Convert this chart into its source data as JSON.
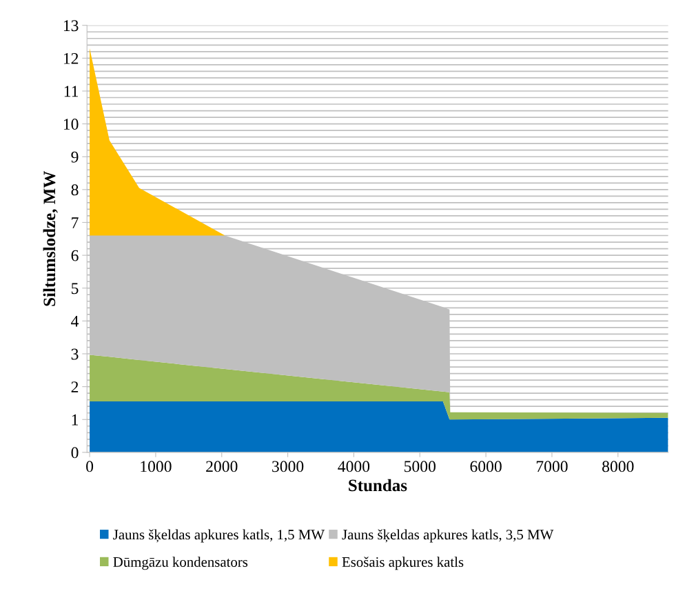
{
  "chart_data": {
    "type": "area",
    "stacked": true,
    "xlabel": "Stundas",
    "ylabel": "Siltumslodze, MW",
    "x": [
      0,
      300,
      750,
      2050,
      5350,
      5450,
      5460,
      8760
    ],
    "series": [
      {
        "name": "Jauns šķeldas apkures katls, 1,5 MW",
        "color": "#0070c0",
        "values": [
          1.55,
          1.55,
          1.55,
          1.55,
          1.55,
          1.0,
          1.0,
          1.05
        ]
      },
      {
        "name": "Dūmgāzu kondensators",
        "color": "#9bbb59",
        "values": [
          1.42,
          1.36,
          1.26,
          0.99,
          0.3,
          0.83,
          0.22,
          0.15
        ]
      },
      {
        "name": "Jauns šķeldas apkures katls, 3,5 MW",
        "color": "#bfbfbf",
        "values": [
          3.63,
          3.69,
          3.79,
          4.06,
          2.57,
          2.52,
          0,
          0
        ]
      },
      {
        "name": "Esošais apkures katls",
        "color": "#ffc000",
        "values": [
          5.7,
          2.9,
          1.45,
          0,
          0,
          0,
          0,
          0
        ]
      }
    ],
    "xlim": [
      -40,
      8760
    ],
    "xticks": [
      0,
      1000,
      2000,
      3000,
      4000,
      5000,
      6000,
      7000,
      8000
    ],
    "ylim": [
      0,
      13
    ],
    "yticks": [
      0,
      {
        "value": 0.2,
        "label": null
      },
      {
        "value": 0.4,
        "label": null
      },
      {
        "value": 0.6,
        "label": null
      },
      {
        "value": 0.8,
        "label": null
      },
      1,
      {
        "value": 1.2,
        "label": null
      },
      {
        "value": 1.4,
        "label": null
      },
      {
        "value": 1.6,
        "label": null
      },
      {
        "value": 1.8,
        "label": null
      },
      2,
      {
        "value": 2.2,
        "label": null
      },
      {
        "value": 2.4,
        "label": null
      },
      {
        "value": 2.6,
        "label": null
      },
      {
        "value": 2.8,
        "label": null
      },
      3,
      {
        "value": 3.2,
        "label": null
      },
      {
        "value": 3.4,
        "label": null
      },
      {
        "value": 3.6,
        "label": null
      },
      {
        "value": 3.8,
        "label": null
      },
      4,
      {
        "value": 4.2,
        "label": null
      },
      {
        "value": 4.4,
        "label": null
      },
      {
        "value": 4.6,
        "label": null
      },
      {
        "value": 4.8,
        "label": null
      },
      5,
      {
        "value": 5.2,
        "label": null
      },
      {
        "value": 5.4,
        "label": null
      },
      {
        "value": 5.6,
        "label": null
      },
      {
        "value": 5.8,
        "label": null
      },
      6,
      {
        "value": 6.2,
        "label": null
      },
      {
        "value": 6.4,
        "label": null
      },
      {
        "value": 6.6,
        "label": null
      },
      {
        "value": 6.8,
        "label": null
      },
      7,
      {
        "value": 7.2,
        "label": null
      },
      {
        "value": 7.4,
        "label": null
      },
      {
        "value": 7.6,
        "label": null
      },
      {
        "value": 7.8,
        "label": null
      },
      8,
      {
        "value": 8.2,
        "label": null
      },
      {
        "value": 8.4,
        "label": null
      },
      {
        "value": 8.6,
        "label": null
      },
      {
        "value": 8.8,
        "label": null
      },
      9,
      {
        "value": 9.2,
        "label": null
      },
      {
        "value": 9.4,
        "label": null
      },
      {
        "value": 9.6,
        "label": null
      },
      {
        "value": 9.8,
        "label": null
      },
      10,
      {
        "value": 10.2,
        "label": null
      },
      {
        "value": 10.4,
        "label": null
      },
      {
        "value": 10.6,
        "label": null
      },
      {
        "value": 10.8,
        "label": null
      },
      11,
      {
        "value": 11.2,
        "label": null
      },
      {
        "value": 11.4,
        "label": null
      },
      {
        "value": 11.6,
        "label": null
      },
      {
        "value": 11.8,
        "label": null
      },
      12,
      {
        "value": 12.2,
        "label": null
      },
      {
        "value": 12.4,
        "label": null
      },
      {
        "value": 12.6,
        "label": null
      },
      {
        "value": 12.8,
        "label": null
      },
      13
    ],
    "grid": "y",
    "legend": "bottom"
  }
}
